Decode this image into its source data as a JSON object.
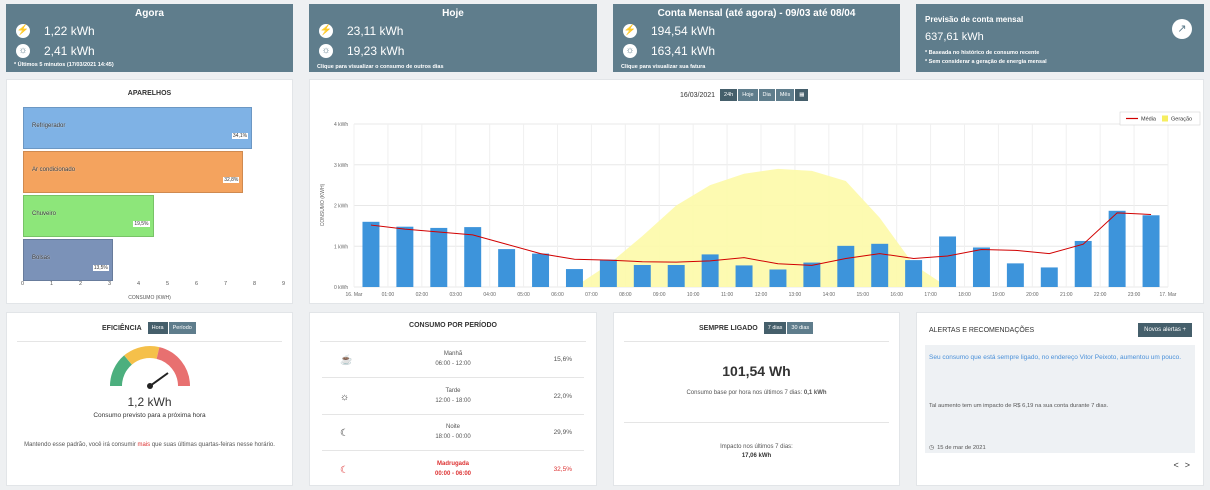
{
  "kpis": {
    "agora": {
      "title": "Agora",
      "consumo": "1,22 kWh",
      "geracao": "2,41 kWh",
      "note": "* Últimos 5 minutos (17/03/2021 14:45)"
    },
    "hoje": {
      "title": "Hoje",
      "consumo": "23,11 kWh",
      "geracao": "19,23 kWh",
      "note": "Clique para visualizar o consumo de outros dias"
    },
    "mensal": {
      "title": "Conta Mensal (até agora) - 09/03 até 08/04",
      "consumo": "194,54 kWh",
      "geracao": "163,41 kWh",
      "note": "Clique para visualizar sua fatura"
    },
    "previsao": {
      "title": "Previsão de conta mensal",
      "value": "637,61 kWh",
      "note1": "* Baseada no histórico de consumo recente",
      "note2": "* Sem considerar a geração de energia mensal"
    }
  },
  "aparelhos": {
    "title": "APARELHOS",
    "items": [
      {
        "label": "Refrigerador",
        "value": 7.9,
        "pct": "34,1%",
        "color": "#7fb2e5"
      },
      {
        "label": "Ar condicionado",
        "value": 7.6,
        "pct": "32,8%",
        "color": "#f4a35e"
      },
      {
        "label": "Chuveiro",
        "value": 4.5,
        "pct": "19,5%",
        "color": "#8de67a"
      },
      {
        "label": "Bolsas",
        "value": 3.1,
        "pct": "13,5%",
        "color": "#7b92b8"
      }
    ],
    "ticks": [
      "0",
      "1",
      "2",
      "3",
      "4",
      "5",
      "6",
      "7",
      "8",
      "9"
    ],
    "xlabel": "CONSUMO (KWH)"
  },
  "dia": {
    "date": "16/03/2021",
    "buttons": [
      "24h",
      "Hoje",
      "Dia",
      "Mês"
    ],
    "calendar_icon": "calendar-icon"
  },
  "chart_data": {
    "type": "bar",
    "title": "",
    "ylabel": "CONSUMO (KWH)",
    "ylim": [
      0,
      4
    ],
    "yticks": [
      "0 kWh",
      "1 kWh",
      "2 kWh",
      "3 kWh",
      "4 kWh"
    ],
    "categories": [
      "16. Mar",
      "01:00",
      "02:00",
      "03:00",
      "04:00",
      "05:00",
      "06:00",
      "07:00",
      "08:00",
      "09:00",
      "10:00",
      "11:00",
      "12:00",
      "13:00",
      "14:00",
      "15:00",
      "16:00",
      "17:00",
      "18:00",
      "19:00",
      "20:00",
      "21:00",
      "22:00",
      "23:00",
      "17. Mar"
    ],
    "consumo": [
      1.6,
      1.48,
      1.45,
      1.47,
      0.93,
      0.82,
      0.44,
      0.67,
      0.54,
      0.54,
      0.8,
      0.53,
      0.43,
      0.6,
      1.01,
      1.06,
      0.66,
      1.24,
      0.97,
      0.58,
      0.48,
      1.13,
      1.87,
      1.76
    ],
    "media": [
      1.52,
      1.42,
      1.35,
      1.28,
      1.05,
      0.82,
      0.68,
      0.66,
      0.62,
      0.61,
      0.64,
      0.72,
      0.57,
      0.53,
      0.7,
      0.82,
      0.7,
      0.76,
      0.92,
      0.9,
      0.82,
      1.05,
      1.82,
      1.78
    ],
    "geracao": [
      0,
      0,
      0,
      0,
      0,
      0,
      0,
      0.55,
      1.25,
      2.0,
      2.5,
      2.78,
      2.9,
      2.85,
      2.6,
      1.7,
      0.55,
      0,
      0,
      0,
      0,
      0,
      0,
      0
    ],
    "legend": [
      "Média",
      "Geração"
    ],
    "colors": {
      "consumo": "#3d94db",
      "media": "#d10000",
      "geracao": "#fdfaa8"
    }
  },
  "eficiencia": {
    "title": "EFICIÊNCIA",
    "buttons": [
      "Hora",
      "Período"
    ],
    "value": "1,2 kWh",
    "subtitle": "Consumo previsto para a próxima hora",
    "text_a": "Mantendo esse padrão, você irá consumir ",
    "text_b": "mais",
    "text_c": " que suas últimas quartas-feiras nesse horário."
  },
  "periodo": {
    "title": "CONSUMO POR PERÍODO",
    "rows": [
      {
        "icon": "coffee-icon",
        "name": "Manhã",
        "hours": "06:00 - 12:00",
        "pct": "15,6%"
      },
      {
        "icon": "sun-icon",
        "name": "Tarde",
        "hours": "12:00 - 18:00",
        "pct": "22,0%"
      },
      {
        "icon": "moon-icon",
        "name": "Noite",
        "hours": "18:00 - 00:00",
        "pct": "29,9%"
      },
      {
        "icon": "night-moon-icon",
        "name": "Madrugada",
        "hours": "00:00 - 06:00",
        "pct": "32,5%"
      }
    ]
  },
  "sempre": {
    "title": "SEMPRE LIGADO",
    "buttons": [
      "7 dias",
      "30 dias"
    ],
    "value": "101,54 Wh",
    "line1": "Consumo base por hora nos últimos 7 dias: ",
    "line1b": "0,1 kWh",
    "line2": "Impacto nos últimos 7 dias:",
    "line3": "17,06 kWh"
  },
  "alertas": {
    "title": "ALERTAS E RECOMENDAÇÕES",
    "button": "Novos alertas +",
    "msg": "Seu consumo que está sempre ligado, no endereço Vitor Peixoto, aumentou um pouco.",
    "msg2": "Tal aumento tem um impacto de R$ 6,19 na sua conta durante 7 dias.",
    "date": "15 de mar de 2021",
    "prev": "<",
    "next": ">"
  }
}
